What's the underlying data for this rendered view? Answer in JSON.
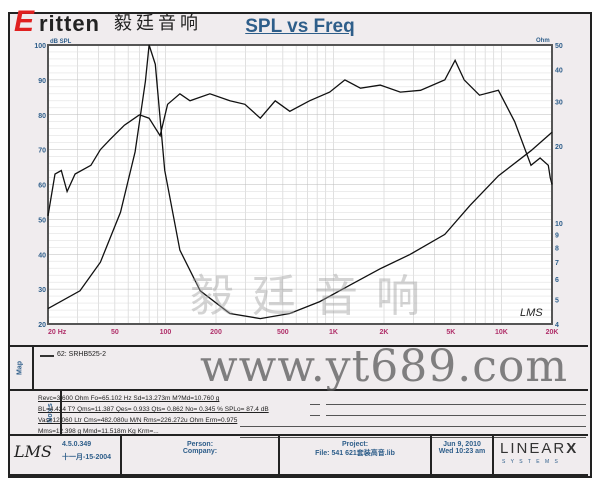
{
  "logo": {
    "brand": "ritten",
    "brand_initial": "E",
    "chinese": "毅廷音响"
  },
  "watermarks": {
    "site": "www.yt689.com",
    "chinese": "毅廷音响"
  },
  "chart_data": {
    "type": "line",
    "title": "SPL vs Freq",
    "xlabel": "",
    "ylabel_left": "dB SPL",
    "ylabel_right": "Ohm",
    "x_scale": "log",
    "xlim": [
      20,
      20000
    ],
    "ylim_left": [
      20,
      100
    ],
    "ylim_right": [
      4,
      50
    ],
    "y_right_scale": "log",
    "grid": true,
    "x_ticks": [
      {
        "v": 20,
        "label": "20  Hz"
      },
      {
        "v": 50,
        "label": "50"
      },
      {
        "v": 100,
        "label": "100"
      },
      {
        "v": 200,
        "label": "200"
      },
      {
        "v": 500,
        "label": "500"
      },
      {
        "v": 1000,
        "label": "1K"
      },
      {
        "v": 2000,
        "label": "2K"
      },
      {
        "v": 5000,
        "label": "5K"
      },
      {
        "v": 10000,
        "label": "10K"
      },
      {
        "v": 20000,
        "label": "20K"
      }
    ],
    "y_left_ticks": [
      20,
      30,
      40,
      50,
      60,
      70,
      80,
      90,
      100
    ],
    "y_right_ticks": [
      4,
      5,
      6,
      7,
      8,
      9,
      10,
      20,
      30,
      40,
      50
    ],
    "series": [
      {
        "role": "SPL",
        "axis": "left",
        "x": [
          20,
          22,
          24,
          26,
          29,
          36,
          41,
          47,
          57,
          70,
          80,
          93,
          103,
          122,
          140,
          184,
          242,
          297,
          367,
          450,
          550,
          720,
          950,
          1170,
          1450,
          1900,
          2500,
          3300,
          4600,
          5300,
          6000,
          7400,
          9600,
          12000,
          15000,
          17000,
          19000,
          19500,
          20000
        ],
        "y": [
          51,
          63,
          64,
          58,
          63,
          65.5,
          70,
          73,
          77,
          80,
          79,
          74,
          83,
          86,
          84,
          86,
          84,
          83,
          79,
          84,
          81,
          84,
          86.5,
          90,
          87.6,
          88.5,
          86.5,
          87,
          90,
          95.6,
          90,
          85.6,
          87,
          78,
          65.5,
          67.6,
          65.5,
          62,
          60
        ]
      },
      {
        "role": "Impedance",
        "axis": "right",
        "x": [
          20,
          31,
          41,
          54,
          66,
          76,
          80,
          87,
          99,
          122,
          161,
          242,
          367,
          550,
          830,
          1260,
          1900,
          2850,
          4600,
          6500,
          9600,
          15000,
          20000
        ],
        "y": [
          4.6,
          5.4,
          7,
          11,
          19,
          36,
          50,
          42,
          16.1,
          7.8,
          5.4,
          4.4,
          4.2,
          4.4,
          4.9,
          5.7,
          6.6,
          7.5,
          9.0,
          11.7,
          15.3,
          19.2,
          22.7
        ]
      }
    ],
    "annotation": "LMS"
  },
  "map": {
    "label": "Map",
    "legend": "62: SRHB525-2"
  },
  "notes": {
    "label": "Notes",
    "lines": [
      "Revc=3.600 Ohm  Fo=65.102 Hz  Sd=13.273m M?Md=10.760 g",
      "BL=4.424 T?  Qms=11.387  Qes= 0.933  Qts= 0.862  No= 0.345 %  SPLo= 87.4 dB",
      "Vas=12.060 Ltr  Cms=482.080u M/N  Rms=226.272u Ohm  Erm=0.975",
      "Mms=12.398 g  Mmd=11.518m Kg  Krm=..."
    ]
  },
  "footer": {
    "lms": "LMS",
    "version": "4.5.0.349",
    "build_date": "十一月-15-2004",
    "person": "Person:",
    "company": "Company:",
    "project": "Project:",
    "file": "File: 541  621套装高音.lib",
    "date": "Jun  9, 2010",
    "time": "Wed 10:23 am",
    "vendor": "LINEAR",
    "vendor_x": "X",
    "vendor_sub": "S Y S T E M S"
  }
}
